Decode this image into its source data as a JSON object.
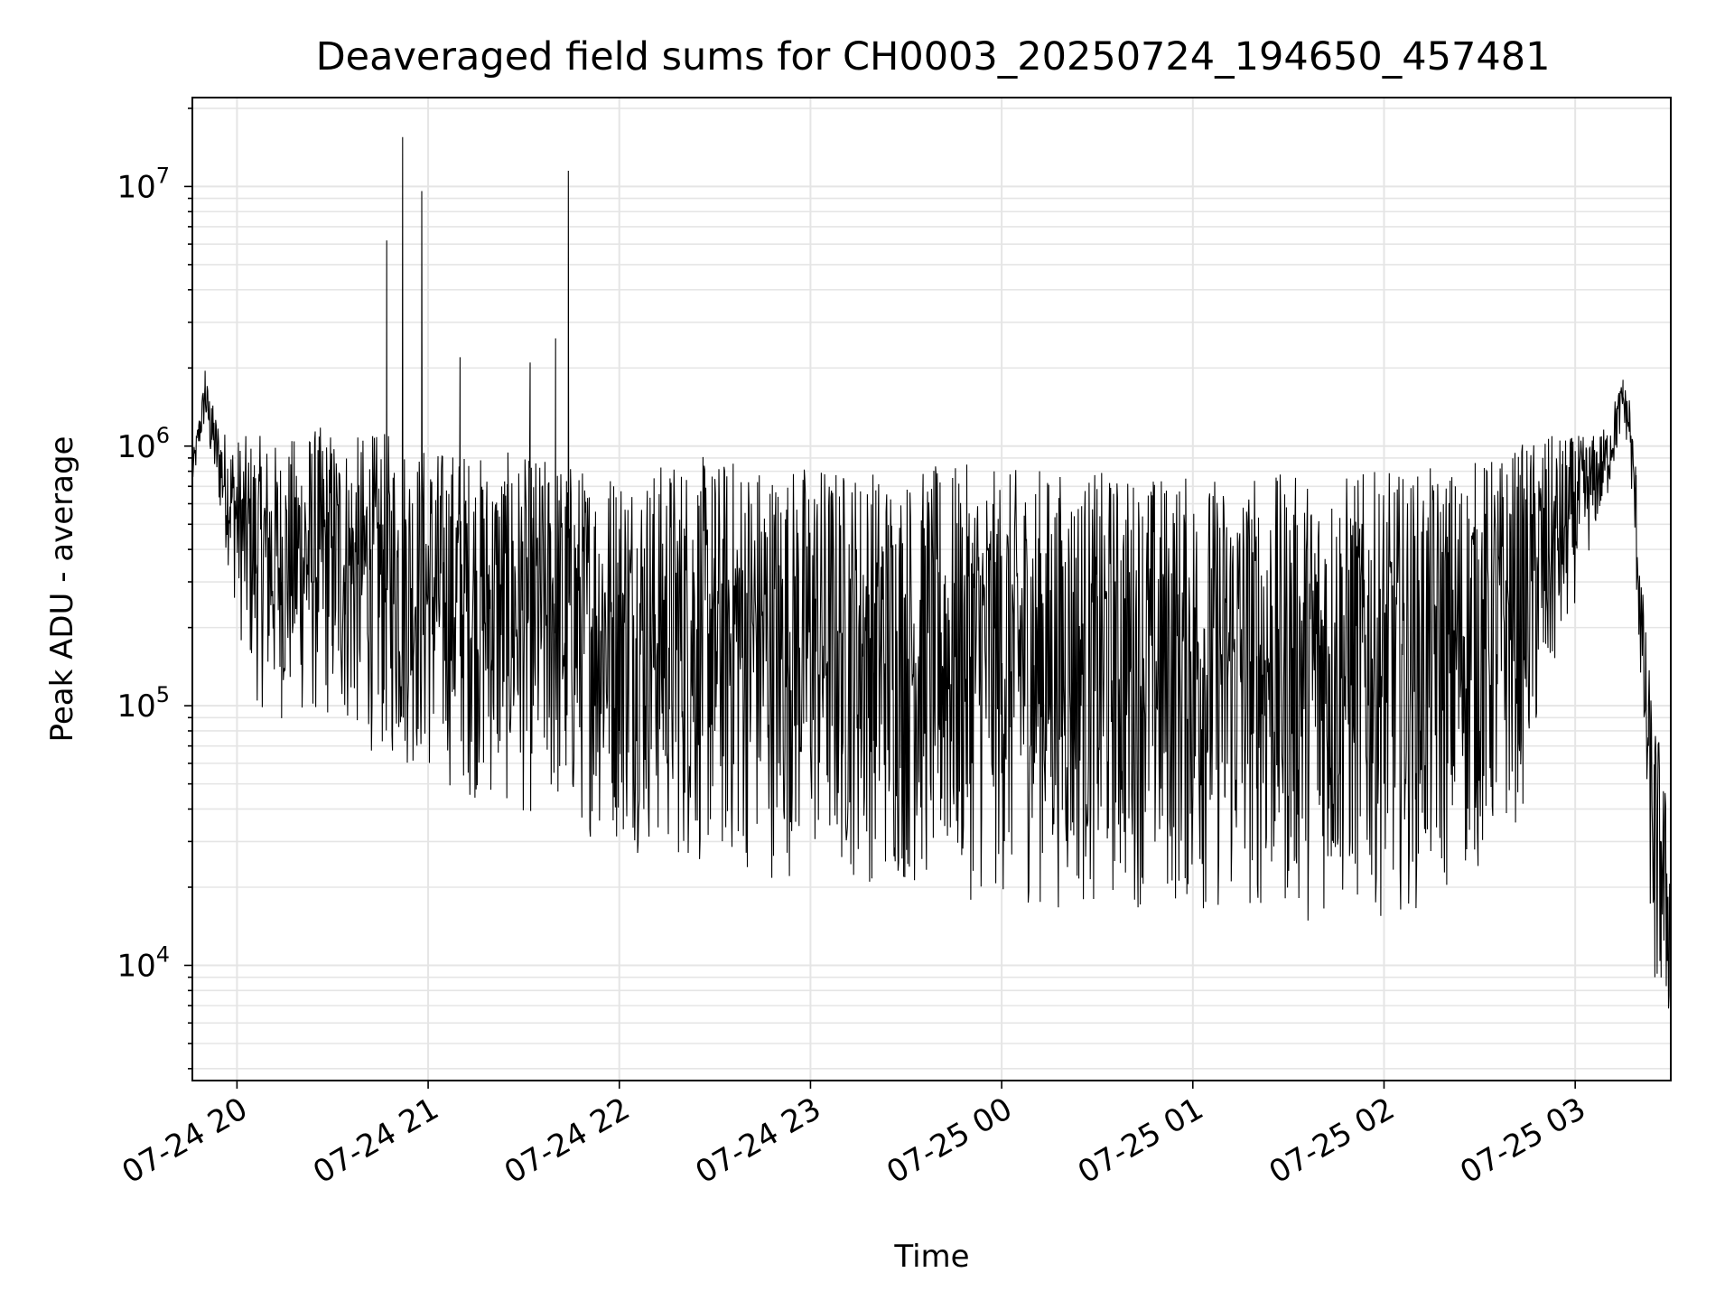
{
  "chart_data": {
    "type": "line",
    "title": "Deaveraged field sums for CH0003_20250724_194650_457481",
    "xlabel": "Time",
    "ylabel": "Peak ADU - average",
    "yscale": "log",
    "ylim": [
      3600,
      22000000
    ],
    "xlim": [
      "2025-07-24 19:46",
      "2025-07-25 03:30"
    ],
    "grid": true,
    "x_ticks": [
      {
        "value": "2025-07-24 20:00",
        "label": "07-24 20"
      },
      {
        "value": "2025-07-24 21:00",
        "label": "07-24 21"
      },
      {
        "value": "2025-07-24 22:00",
        "label": "07-24 22"
      },
      {
        "value": "2025-07-24 23:00",
        "label": "07-24 23"
      },
      {
        "value": "2025-07-25 00:00",
        "label": "07-25 00"
      },
      {
        "value": "2025-07-25 01:00",
        "label": "07-25 01"
      },
      {
        "value": "2025-07-25 02:00",
        "label": "07-25 02"
      },
      {
        "value": "2025-07-25 03:00",
        "label": "07-25 03"
      }
    ],
    "y_ticks": [
      {
        "value": 10000,
        "base": "10",
        "exp": "4"
      },
      {
        "value": 100000,
        "base": "10",
        "exp": "5"
      },
      {
        "value": 1000000,
        "base": "10",
        "exp": "6"
      },
      {
        "value": 10000000,
        "base": "10",
        "exp": "7"
      }
    ],
    "line_color": "#000000",
    "grid_color": "#e5e5e5",
    "series": [
      {
        "x": [
          "2025-07-24 19:46",
          "2025-07-24 19:48",
          "2025-07-24 19:50",
          "2025-07-24 19:52",
          "2025-07-24 19:55",
          "2025-07-24 19:58",
          "2025-07-24 20:02",
          "2025-07-24 20:06",
          "2025-07-24 20:10",
          "2025-07-24 20:14",
          "2025-07-24 20:18",
          "2025-07-24 20:22",
          "2025-07-24 20:26",
          "2025-07-24 20:30",
          "2025-07-24 20:34",
          "2025-07-24 20:38",
          "2025-07-24 20:42",
          "2025-07-24 20:46",
          "2025-07-24 20:47",
          "2025-07-24 20:48",
          "2025-07-24 20:52",
          "2025-07-24 20:57",
          "2025-07-24 20:58",
          "2025-07-24 21:00",
          "2025-07-24 21:05",
          "2025-07-24 21:09",
          "2025-07-24 21:10",
          "2025-07-24 21:15",
          "2025-07-24 21:20",
          "2025-07-24 21:25",
          "2025-07-24 21:32",
          "2025-07-24 21:33",
          "2025-07-24 21:38",
          "2025-07-24 21:40",
          "2025-07-24 21:43",
          "2025-07-24 21:44",
          "2025-07-24 21:48",
          "2025-07-24 21:55",
          "2025-07-24 22:00",
          "2025-07-24 22:10",
          "2025-07-24 22:15",
          "2025-07-24 22:20",
          "2025-07-24 22:30",
          "2025-07-24 22:40",
          "2025-07-24 22:50",
          "2025-07-24 23:00",
          "2025-07-24 23:10",
          "2025-07-24 23:20",
          "2025-07-24 23:30",
          "2025-07-24 23:40",
          "2025-07-24 23:50",
          "2025-07-25 00:00",
          "2025-07-25 00:10",
          "2025-07-25 00:20",
          "2025-07-25 00:30",
          "2025-07-25 00:40",
          "2025-07-25 00:50",
          "2025-07-25 01:00",
          "2025-07-25 01:10",
          "2025-07-25 01:20",
          "2025-07-25 01:30",
          "2025-07-25 01:40",
          "2025-07-25 01:50",
          "2025-07-25 02:00",
          "2025-07-25 02:10",
          "2025-07-25 02:20",
          "2025-07-25 02:30",
          "2025-07-25 02:38",
          "2025-07-25 02:44",
          "2025-07-25 02:50",
          "2025-07-25 02:56",
          "2025-07-25 03:00",
          "2025-07-25 03:05",
          "2025-07-25 03:10",
          "2025-07-25 03:13",
          "2025-07-25 03:15",
          "2025-07-25 03:17",
          "2025-07-25 03:19",
          "2025-07-25 03:21",
          "2025-07-25 03:23",
          "2025-07-25 03:25",
          "2025-07-25 03:27",
          "2025-07-25 03:30"
        ],
        "y": [
          700000,
          1200000,
          1950000,
          1400000,
          900000,
          600000,
          500000,
          350000,
          400000,
          300000,
          350000,
          350000,
          400000,
          450000,
          300000,
          350000,
          400000,
          400000,
          6200000,
          400000,
          15500000,
          300000,
          9600000,
          350000,
          200000,
          250000,
          2200000,
          200000,
          150000,
          130000,
          2100000,
          100000,
          90000,
          2600000,
          80000,
          11500000,
          80000,
          75000,
          80000,
          90000,
          60000,
          70000,
          80000,
          70000,
          60000,
          70000,
          65000,
          55000,
          55000,
          55000,
          50000,
          55000,
          50000,
          50000,
          50000,
          50000,
          48000,
          45000,
          45000,
          48000,
          45000,
          45000,
          48000,
          50000,
          55000,
          60000,
          80000,
          110000,
          150000,
          220000,
          350000,
          450000,
          650000,
          900000,
          1400000,
          1800000,
          1500000,
          700000,
          200000,
          70000,
          9000,
          30000,
          5200
        ],
        "envelope_top": [
          900000,
          1300000,
          1900000,
          1500000,
          1200000,
          1100000,
          1100000,
          1100000,
          1100000,
          1000000,
          1100000,
          1200000,
          1200000,
          1200000,
          1100000,
          1100000,
          1150000,
          1100000,
          1200000,
          1100000,
          1100000,
          1000000,
          1050000,
          1000000,
          1000000,
          1000000,
          1000000,
          950000,
          900000,
          950000,
          900000,
          950000,
          900000,
          950000,
          900000,
          900000,
          850000,
          850000,
          900000,
          850000,
          900000,
          950000,
          900000,
          950000,
          850000,
          900000,
          850000,
          850000,
          800000,
          850000,
          850000,
          800000,
          850000,
          800000,
          800000,
          800000,
          800000,
          780000,
          780000,
          800000,
          780000,
          780000,
          800000,
          800000,
          800000,
          850000,
          900000,
          950000,
          1050000,
          1100000,
          1100000,
          1100000,
          1100000,
          1200000,
          1600000,
          1800000,
          1500000,
          900000,
          300000,
          150000,
          90000,
          70000,
          30000
        ],
        "envelope_bottom": [
          650000,
          900000,
          1200000,
          800000,
          500000,
          300000,
          150000,
          100000,
          90000,
          85000,
          90000,
          80000,
          85000,
          80000,
          75000,
          70000,
          65000,
          60000,
          60000,
          58000,
          55000,
          55000,
          50000,
          50000,
          48000,
          45000,
          45000,
          42000,
          40000,
          38000,
          36000,
          35000,
          35000,
          34000,
          33000,
          32000,
          31000,
          30000,
          28000,
          26000,
          24000,
          23000,
          22000,
          22000,
          21000,
          22000,
          21000,
          20000,
          19000,
          18000,
          17500,
          17000,
          16500,
          16000,
          16000,
          16500,
          16000,
          15000,
          14500,
          15000,
          14500,
          14500,
          15000,
          15500,
          16000,
          18000,
          22000,
          28000,
          40000,
          80000,
          150000,
          250000,
          400000,
          600000,
          900000,
          1200000,
          900000,
          300000,
          80000,
          20000,
          7000,
          6000,
          5200
        ]
      }
    ]
  }
}
